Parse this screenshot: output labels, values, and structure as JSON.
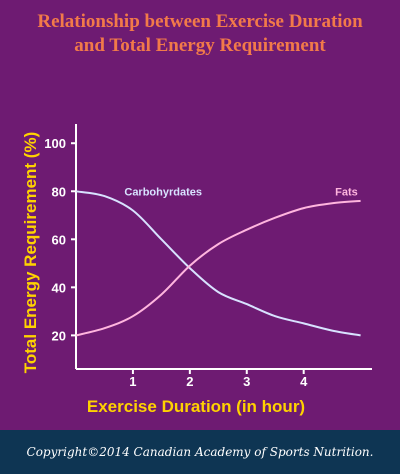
{
  "title_line1": "Relationship between Exercise Duration",
  "title_line2": "and Total Energy Requirement",
  "footer": "Copyright©2014 Canadian Academy of Sports Nutrition.",
  "colors": {
    "background": "#6e1b72",
    "title": "#f27a49",
    "axis_label": "#ffd200",
    "axis": "#ffffff",
    "footer_bg": "#0e3553",
    "carbohydrates": "#d8e2ff",
    "fats": "#ffb5de"
  },
  "chart_data": {
    "type": "line",
    "xlabel": "Exercise Duration (in hour)",
    "ylabel": "Total Energy Requirement (%)",
    "xticks": [
      1,
      2,
      3,
      4
    ],
    "yticks": [
      20,
      40,
      60,
      80,
      100
    ],
    "xlim": [
      0,
      5.2
    ],
    "ylim": [
      6,
      108
    ],
    "series": [
      {
        "name": "Carbohyrdates",
        "x": [
          0,
          0.5,
          1,
          1.5,
          2,
          2.5,
          3,
          3.5,
          4,
          4.5,
          5
        ],
        "values": [
          80,
          78,
          72,
          60,
          48,
          38,
          33,
          28,
          25,
          22,
          20
        ]
      },
      {
        "name": "Fats",
        "x": [
          0,
          0.5,
          1,
          1.5,
          2,
          2.5,
          3,
          3.5,
          4,
          4.5,
          5
        ],
        "values": [
          20,
          23,
          28,
          37,
          49,
          58,
          64,
          69,
          73,
          75,
          76
        ]
      }
    ]
  }
}
